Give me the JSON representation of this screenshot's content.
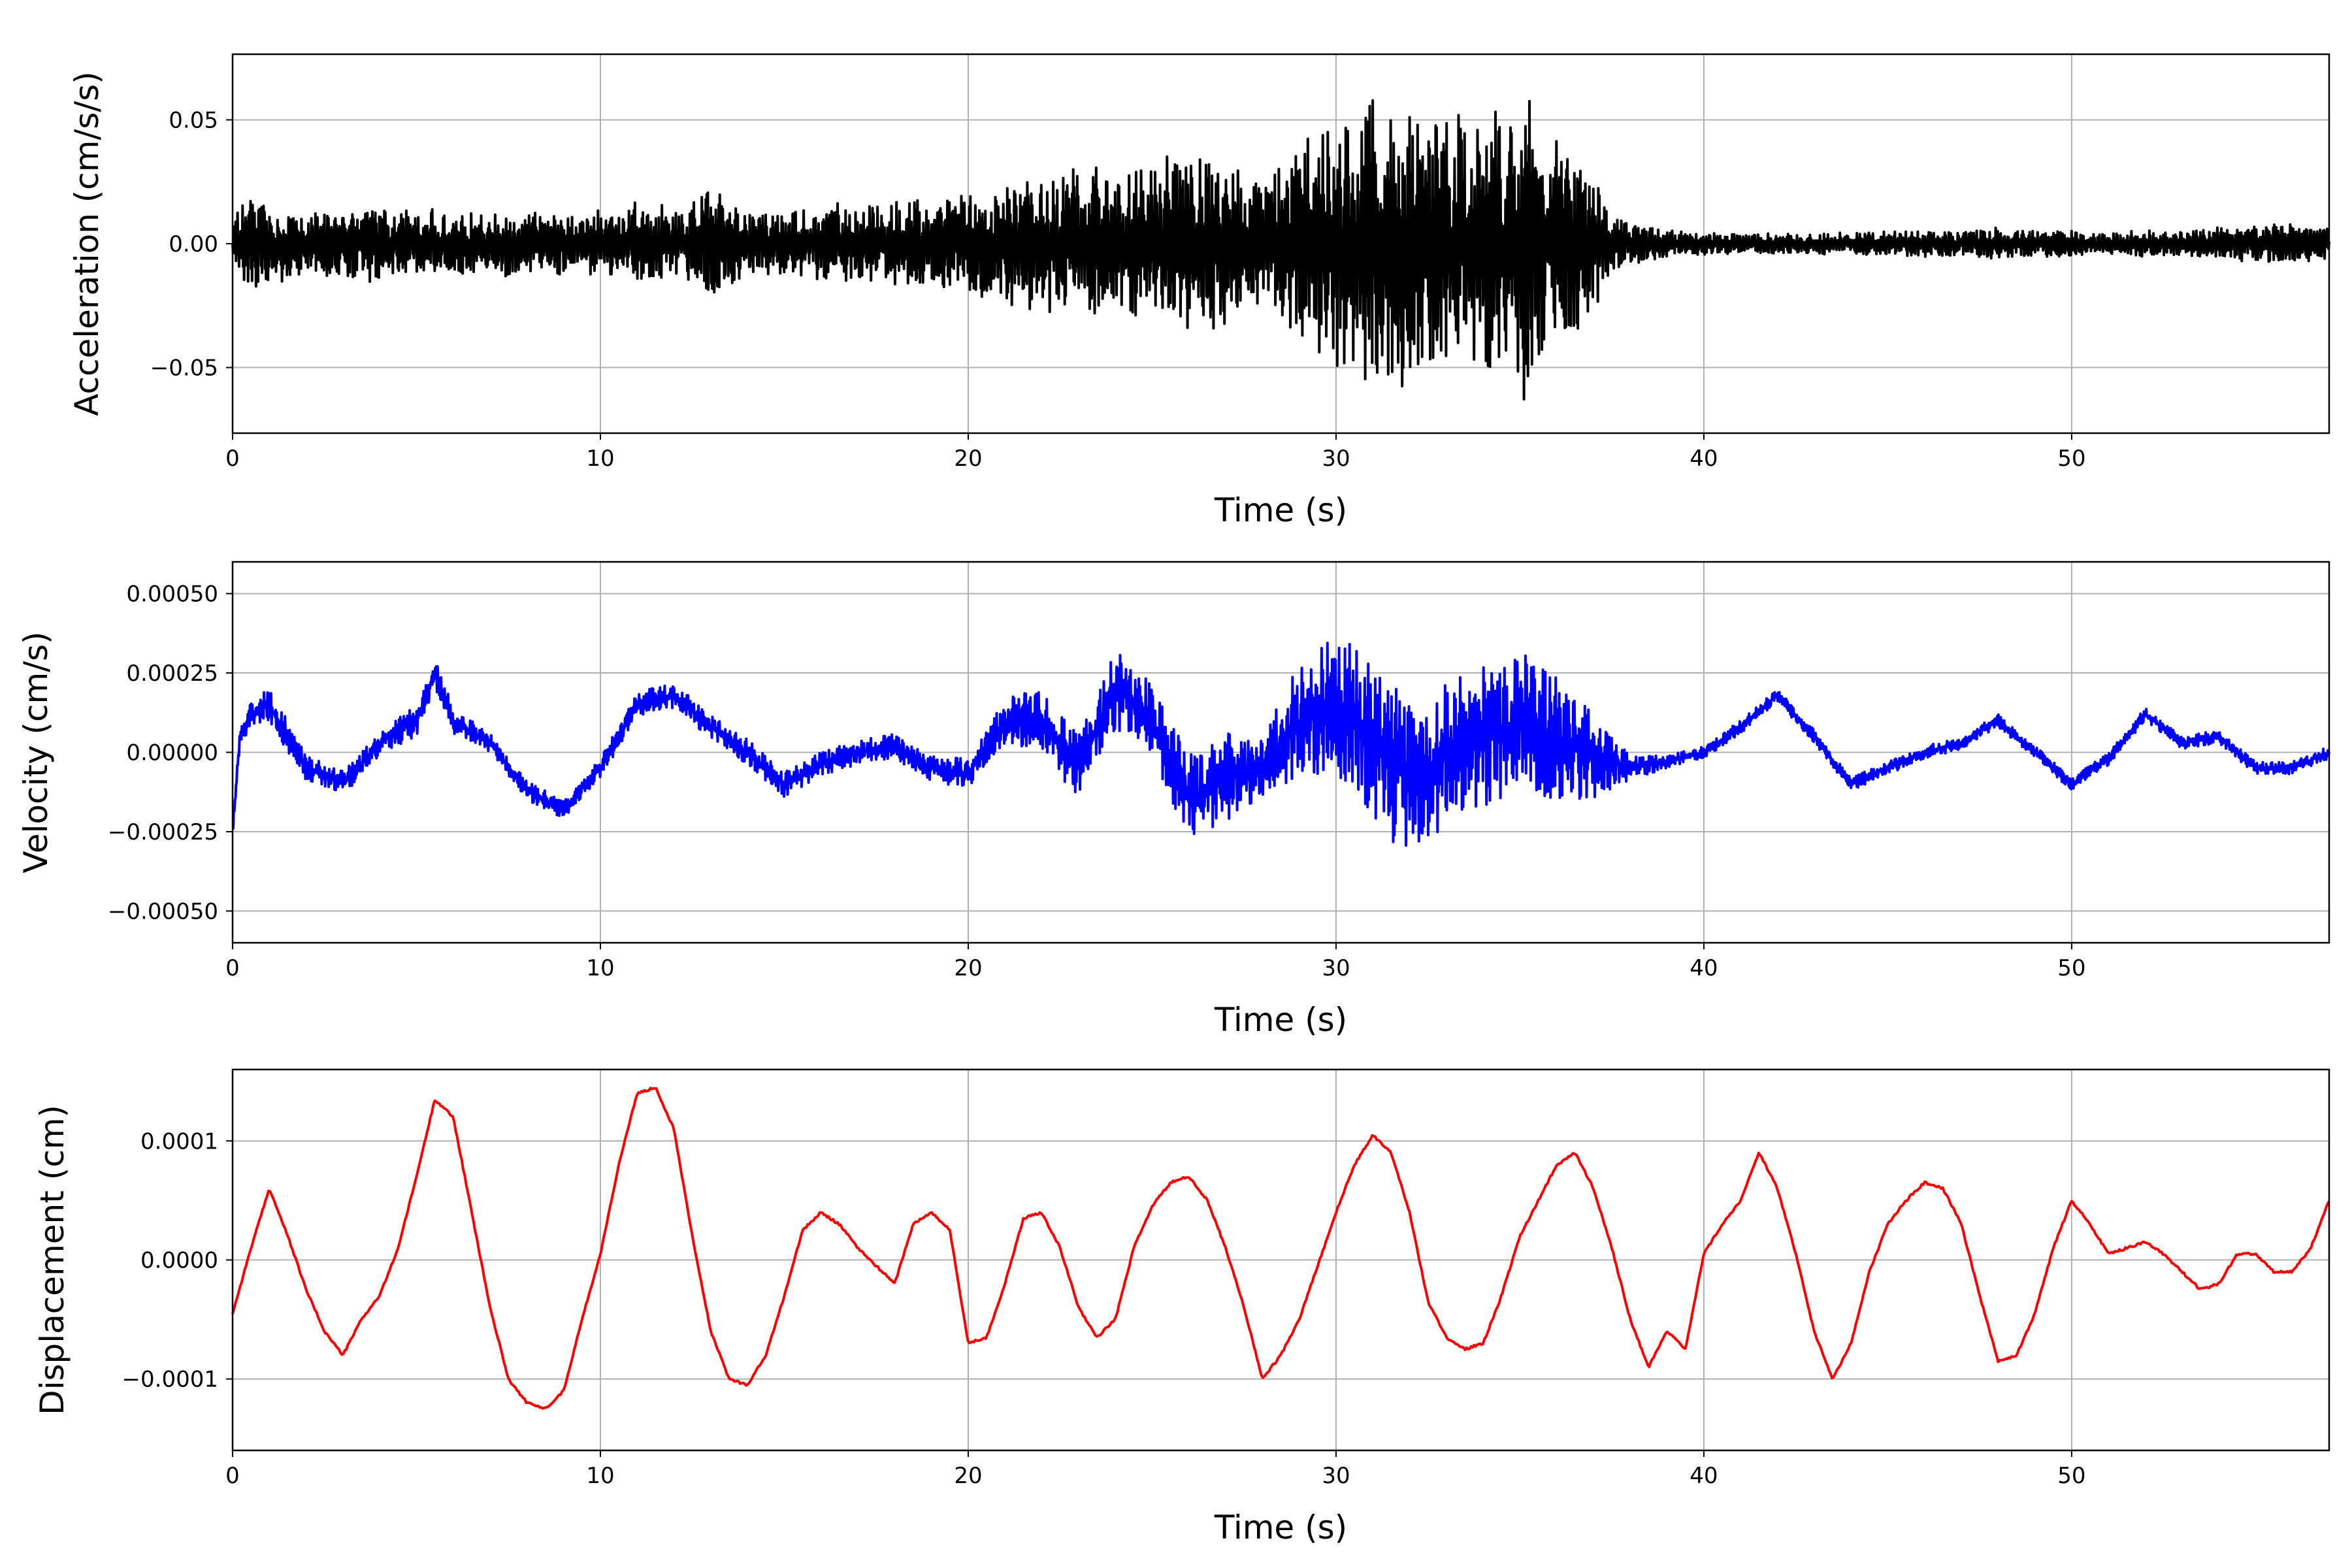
{
  "chart_data": [
    {
      "type": "line",
      "xlabel": "Time (s)",
      "ylabel": "Acceleration (cm/s/s)",
      "xlim": [
        0,
        57
      ],
      "ylim": [
        -0.0765,
        0.0765
      ],
      "xticks": [
        0,
        10,
        20,
        30,
        40,
        50
      ],
      "xtick_labels": [
        "0",
        "10",
        "20",
        "30",
        "40",
        "50"
      ],
      "yticks": [
        -0.05,
        0.0,
        0.05
      ],
      "ytick_labels": [
        "−0.05",
        "0.00",
        "0.05"
      ],
      "grid": true,
      "color": "#000000",
      "series": [
        {
          "x": [
            0,
            0.4,
            1,
            2,
            3,
            4,
            5,
            6,
            7,
            8,
            9,
            10,
            11,
            12,
            13,
            14,
            15,
            16,
            17,
            18,
            19,
            20,
            21,
            22,
            23,
            24,
            25,
            26,
            27,
            28,
            29,
            30,
            30.5,
            31,
            31.5,
            32,
            32.5,
            33,
            33.5,
            34,
            34.5,
            35,
            35.3,
            35.6,
            36,
            36.5,
            37,
            37.5,
            38,
            39,
            40,
            41,
            42,
            43,
            44,
            45,
            46,
            47,
            48,
            49,
            50,
            51,
            52,
            53,
            54,
            55,
            56,
            57
          ],
          "envelope": [
            0.008,
            0.02,
            0.015,
            0.012,
            0.012,
            0.015,
            0.013,
            0.012,
            0.012,
            0.012,
            0.012,
            0.012,
            0.015,
            0.014,
            0.022,
            0.013,
            0.013,
            0.014,
            0.016,
            0.016,
            0.017,
            0.02,
            0.022,
            0.025,
            0.028,
            0.03,
            0.03,
            0.035,
            0.032,
            0.022,
            0.04,
            0.045,
            0.05,
            0.055,
            0.05,
            0.058,
            0.05,
            0.052,
            0.045,
            0.05,
            0.05,
            0.055,
            0.068,
            0.045,
            0.04,
            0.035,
            0.025,
            0.012,
            0.008,
            0.005,
            0.004,
            0.004,
            0.004,
            0.004,
            0.004,
            0.005,
            0.005,
            0.005,
            0.006,
            0.005,
            0.005,
            0.004,
            0.005,
            0.005,
            0.006,
            0.007,
            0.007,
            0.007
          ]
        }
      ]
    },
    {
      "type": "line",
      "xlabel": "Time (s)",
      "ylabel": "Velocity (cm/s)",
      "xlim": [
        0,
        57
      ],
      "ylim": [
        -0.0006,
        0.0006
      ],
      "xticks": [
        0,
        10,
        20,
        30,
        40,
        50
      ],
      "xtick_labels": [
        "0",
        "10",
        "20",
        "30",
        "40",
        "50"
      ],
      "yticks": [
        -0.0005,
        -0.00025,
        0.0,
        0.00025,
        0.0005
      ],
      "ytick_labels": [
        "−0.00050",
        "−0.00025",
        "0.00000",
        "0.00025",
        "0.00050"
      ],
      "grid": true,
      "color": "#0000ff",
      "series": [
        {
          "x": [
            0,
            0.2,
            0.5,
            1,
            1.5,
            2,
            3,
            4,
            5,
            5.5,
            6,
            7,
            8,
            9,
            10,
            11,
            12,
            13,
            14,
            15,
            16,
            17,
            18,
            19,
            20,
            21,
            22,
            23,
            24,
            25,
            26,
            27,
            28,
            29,
            30,
            31,
            32,
            33,
            34,
            35,
            36,
            37,
            38,
            39,
            40,
            41,
            42,
            43,
            44,
            45,
            46,
            47,
            48,
            49,
            50,
            51,
            52,
            53,
            54,
            55,
            56,
            57
          ],
          "y": [
            -0.00025,
            5e-05,
            0.00012,
            0.00015,
            5e-05,
            -5e-05,
            -0.0001,
            3e-05,
            0.0001,
            0.00025,
            0.0001,
            3e-05,
            -0.00012,
            -0.00018,
            -5e-05,
            0.00015,
            0.00018,
            8e-05,
            0.0,
            -0.0001,
            -4e-05,
            0.0,
            2e-05,
            -5e-05,
            -7e-05,
            0.0001,
            0.0001,
            -5e-05,
            0.0002,
            0.0001,
            -0.00015,
            -8e-05,
            -5e-05,
            0.0001,
            0.00015,
            5e-05,
            -0.0001,
            0.0,
            5e-05,
            0.0001,
            5e-05,
            0.0,
            -5e-05,
            -3e-05,
            0.0,
            8e-05,
            0.00018,
            5e-05,
            -0.0001,
            -5e-05,
            0.0,
            3e-05,
            0.0001,
            0.0,
            -0.0001,
            -2e-05,
            0.00012,
            3e-05,
            5e-05,
            -5e-05,
            -5e-05,
            0.0
          ],
          "noise": [
            2e-05,
            3e-05,
            4e-05,
            5e-05,
            5e-05,
            4e-05,
            4e-05,
            4e-05,
            5e-05,
            5e-05,
            4e-05,
            3e-05,
            3e-05,
            3e-05,
            3e-05,
            4e-05,
            4e-05,
            4e-05,
            4e-05,
            4e-05,
            4e-05,
            4e-05,
            4e-05,
            4e-05,
            5e-05,
            7e-05,
            0.0001,
            0.0001,
            0.00014,
            0.00012,
            0.00014,
            0.00014,
            0.0001,
            0.00018,
            0.00022,
            0.00025,
            0.00025,
            0.00022,
            0.00022,
            0.00022,
            0.0002,
            0.00015,
            4e-05,
            2e-05,
            2e-05,
            2e-05,
            2e-05,
            2e-05,
            2e-05,
            2e-05,
            2e-05,
            2e-05,
            2e-05,
            2e-05,
            2e-05,
            2e-05,
            2e-05,
            2e-05,
            2e-05,
            2e-05,
            2e-05,
            2e-05
          ]
        }
      ]
    },
    {
      "type": "line",
      "xlabel": "Time (s)",
      "ylabel": "Displacement (cm)",
      "xlim": [
        0,
        57
      ],
      "ylim": [
        -0.00016,
        0.00016
      ],
      "xticks": [
        0,
        10,
        20,
        30,
        40,
        50
      ],
      "xtick_labels": [
        "0",
        "10",
        "20",
        "30",
        "40",
        "50"
      ],
      "yticks": [
        -0.0001,
        0.0,
        0.0001
      ],
      "ytick_labels": [
        "−0.0001",
        "0.0000",
        "0.0001"
      ],
      "grid": true,
      "color": "#ff0000",
      "series": [
        {
          "x": [
            0,
            0.5,
            1,
            1.5,
            2,
            2.5,
            3,
            3.5,
            4,
            4.5,
            5,
            5.5,
            6,
            6.5,
            7,
            7.5,
            8,
            8.5,
            9,
            9.5,
            10,
            10.5,
            11,
            11.5,
            12,
            12.5,
            13,
            13.5,
            14,
            14.5,
            15,
            15.5,
            16,
            16.5,
            17,
            17.5,
            18,
            18.5,
            19,
            19.5,
            20,
            20.5,
            21,
            21.5,
            22,
            22.5,
            23,
            23.5,
            24,
            24.5,
            25,
            25.5,
            26,
            26.5,
            27,
            27.5,
            28,
            28.5,
            29,
            29.5,
            30,
            30.5,
            31,
            31.5,
            32,
            32.5,
            33,
            33.5,
            34,
            34.5,
            35,
            35.5,
            36,
            36.5,
            37,
            37.5,
            38,
            38.5,
            39,
            39.5,
            40,
            40.5,
            41,
            41.5,
            42,
            42.5,
            43,
            43.5,
            44,
            44.5,
            45,
            45.5,
            46,
            46.5,
            47,
            47.5,
            48,
            48.5,
            49,
            49.5,
            50,
            50.5,
            51,
            51.5,
            52,
            52.5,
            53,
            53.5,
            54,
            54.5,
            55,
            55.5,
            56,
            56.5,
            57
          ],
          "y": [
            -4.5e-05,
            1e-05,
            6e-05,
            2e-05,
            -2.5e-05,
            -6e-05,
            -8e-05,
            -5e-05,
            -3e-05,
            1e-05,
            7e-05,
            0.000135,
            0.00012,
            4e-05,
            -4e-05,
            -0.0001,
            -0.00012,
            -0.000125,
            -0.00011,
            -5e-05,
            5e-06,
            8e-05,
            0.00014,
            0.000145,
            0.00011,
            2e-05,
            -6e-05,
            -0.0001,
            -0.000105,
            -8e-05,
            -3e-05,
            2.5e-05,
            4e-05,
            3e-05,
            1e-05,
            -5e-06,
            -2e-05,
            3e-05,
            4e-05,
            2.5e-05,
            -7e-05,
            -6.5e-05,
            -2e-05,
            3.5e-05,
            4e-05,
            1e-05,
            -4e-05,
            -6.5e-05,
            -5e-05,
            1e-05,
            4.5e-05,
            6.5e-05,
            7e-05,
            5e-05,
            1e-05,
            -4e-05,
            -0.0001,
            -8e-05,
            -5e-05,
            -5e-06,
            4e-05,
            8e-05,
            0.000105,
            9e-05,
            4e-05,
            -3.5e-05,
            -6.5e-05,
            -7.5e-05,
            -7e-05,
            -3e-05,
            2e-05,
            5e-05,
            8e-05,
            9e-05,
            6e-05,
            1e-05,
            -5e-05,
            -9e-05,
            -6e-05,
            -7.5e-05,
            5e-06,
            3e-05,
            5e-05,
            9e-05,
            6e-05,
            5e-06,
            -6e-05,
            -0.0001,
            -7e-05,
            -1e-05,
            3e-05,
            5e-05,
            6.5e-05,
            6e-05,
            3e-05,
            -3e-05,
            -8.5e-05,
            -8e-05,
            -4.5e-05,
            1e-05,
            5e-05,
            3e-05,
            5e-06,
            1e-05,
            1.5e-05,
            5e-06,
            -1e-05,
            -2.5e-05,
            -2e-05,
            5e-06,
            5e-06,
            -1e-05,
            -1e-05,
            1e-05,
            5e-05
          ]
        }
      ]
    }
  ]
}
